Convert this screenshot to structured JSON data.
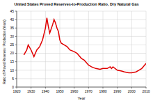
{
  "chart_data": {
    "type": "line",
    "title": "United States Proved Reserves-to-Production Ratio, Dry Natural Gas",
    "x_label": "Year",
    "y_label": "Ratio of Proved Reserves / Production (Years)",
    "x": [
      1925,
      1927,
      1928,
      1930,
      1932,
      1934,
      1936,
      1938,
      1940,
      1941,
      1942,
      1943,
      1945,
      1946,
      1947,
      1948,
      1949,
      1950,
      1951,
      1953,
      1955,
      1957,
      1960,
      1962,
      1965,
      1967,
      1968,
      1970,
      1972,
      1975,
      1978,
      1980,
      1983,
      1985,
      1986,
      1987,
      1990,
      1993,
      1995,
      1998,
      2000,
      2003,
      2005,
      2007,
      2008,
      2009,
      2010
    ],
    "values": [
      19,
      22,
      25,
      22,
      18,
      22,
      24,
      28,
      35,
      41,
      36,
      32,
      37,
      40,
      38,
      35,
      33,
      28,
      26,
      25,
      24,
      22,
      21,
      20,
      17,
      16,
      15,
      13,
      12,
      11,
      10.5,
      11,
      11,
      12,
      11,
      12,
      10,
      9.5,
      9,
      8.5,
      8.5,
      9,
      10,
      11,
      12,
      13,
      14
    ],
    "color": "#e00000",
    "xlim": [
      1920,
      2010
    ],
    "xticks": [
      1920,
      1930,
      1940,
      1950,
      1960,
      1970,
      1980,
      1990,
      2000,
      2010
    ],
    "ylim": [
      0,
      45
    ],
    "yticks": [
      0,
      5,
      10,
      15,
      20,
      25,
      30,
      35,
      40,
      45
    ],
    "grid": true
  }
}
